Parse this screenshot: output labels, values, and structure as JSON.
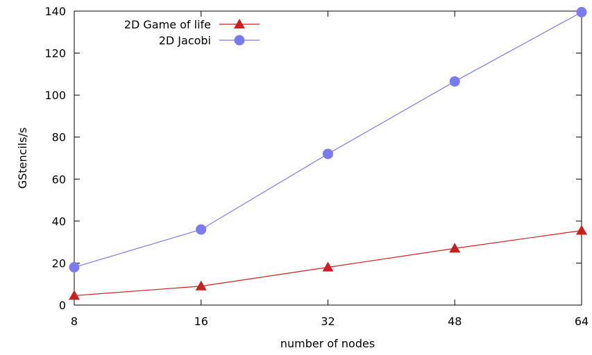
{
  "chart_data": {
    "type": "line",
    "title": "",
    "xlabel": "number of nodes",
    "ylabel": "GStencils/s",
    "categories": [
      "8",
      "16",
      "32",
      "48",
      "64"
    ],
    "yticks": [
      0,
      20,
      40,
      60,
      80,
      100,
      120,
      140
    ],
    "ylim": [
      0,
      140
    ],
    "grid": false,
    "legend_position": "top-left",
    "series": [
      {
        "name": "2D Game of life",
        "color": "#cc1f1f",
        "marker": "triangle",
        "values": [
          4.5,
          9,
          18,
          27,
          35.5
        ]
      },
      {
        "name": "2D Jacobi",
        "color": "#7b7bef",
        "marker": "circle",
        "values": [
          18,
          36,
          72,
          106.5,
          139.5
        ]
      }
    ]
  }
}
